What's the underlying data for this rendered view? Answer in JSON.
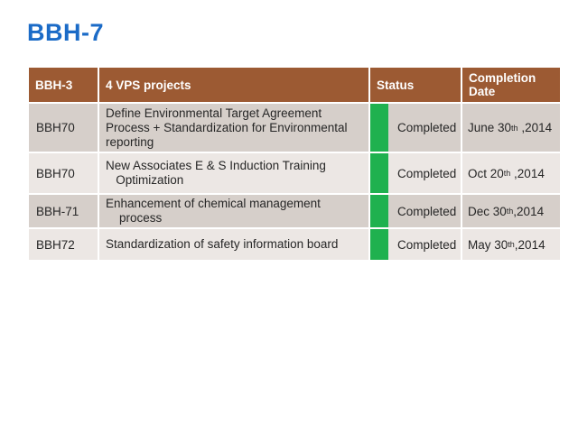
{
  "slide": {
    "title": "BBH-7"
  },
  "colors": {
    "title_blue": "#1B6BC7",
    "header_brown": "#9C5A33",
    "row_odd": "#D6CFCA",
    "row_even": "#ECE7E4",
    "status_green": "#1FB14F",
    "body_text": "#262626"
  },
  "table": {
    "headers": [
      "BBH-3",
      "4 VPS projects",
      "Status",
      "Completion Date"
    ],
    "rows": [
      {
        "id": "BBH70",
        "project": "Define Environmental Target Agreement\nProcess + Standardization for Environmental\nreporting",
        "status": "Completed",
        "date": {
          "main": "June 30",
          "sup": "th",
          "tail": " ,2014"
        }
      },
      {
        "id": "BBH70",
        "project": "New Associates E & S Induction Training\n   Optimization",
        "status": "Completed",
        "date": {
          "main": "Oct 20",
          "sup": "th",
          "tail": " ,2014"
        }
      },
      {
        "id": "BBH-71",
        "project": "Enhancement of chemical management\n    process",
        "status": "Completed",
        "date": {
          "main": "Dec 30",
          "sup": "th",
          "tail": ",2014"
        }
      },
      {
        "id": "BBH72",
        "project": "Standardization of safety information board",
        "status": "Completed",
        "date": {
          "main": "May 30",
          "sup": "th",
          "tail": ",2014"
        }
      }
    ]
  }
}
